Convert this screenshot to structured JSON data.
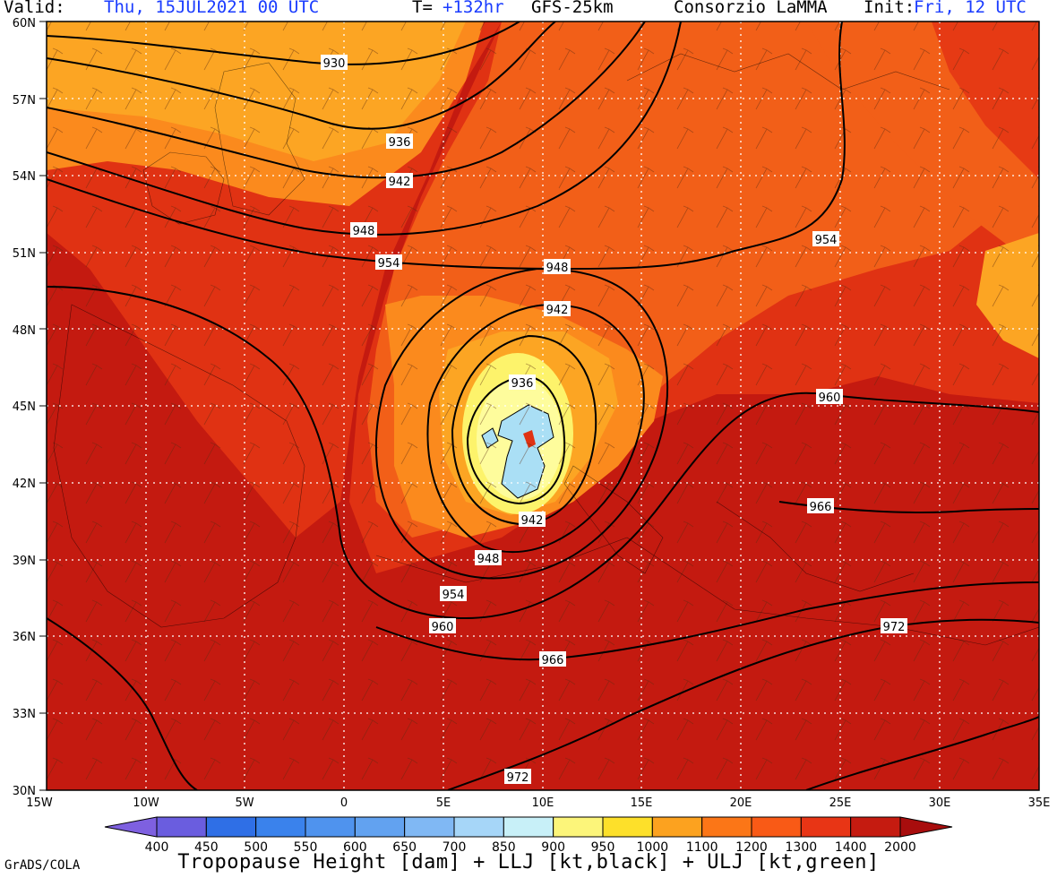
{
  "header": {
    "valid_label": "Valid:",
    "valid_value": "Thu, 15JUL2021 00 UTC",
    "tlabel": "T=",
    "tvalue": "+132hr",
    "model": "GFS-25km",
    "org": "Consorzio LaMMA",
    "init_label": "Init:",
    "init_value": "Fri, 12 UTC"
  },
  "axes": {
    "lat_labels": [
      "60N",
      "57N",
      "54N",
      "51N",
      "48N",
      "45N",
      "42N",
      "39N",
      "36N",
      "33N",
      "30N"
    ],
    "lon_labels": [
      "15W",
      "10W",
      "5W",
      "0",
      "5E",
      "10E",
      "15E",
      "20E",
      "25E",
      "30E",
      "35E"
    ]
  },
  "contour_labels": [
    "930",
    "936",
    "942",
    "948",
    "948",
    "954",
    "954",
    "942",
    "936",
    "942",
    "948",
    "954",
    "960",
    "960",
    "966",
    "966",
    "972",
    "972"
  ],
  "colorbar": {
    "ticks": [
      "400",
      "450",
      "500",
      "550",
      "600",
      "650",
      "700",
      "850",
      "900",
      "950",
      "1000",
      "1100",
      "1200",
      "1300",
      "1400",
      "2000"
    ],
    "colors": [
      "#7e60e0",
      "#6a5ddf",
      "#2f6fe6",
      "#3a82ec",
      "#4f93ee",
      "#62a2f0",
      "#80b8f4",
      "#a6d6f8",
      "#c8f0f8",
      "#fcf57a",
      "#fde02a",
      "#fca21f",
      "#fb7617",
      "#f95a16",
      "#e83515",
      "#c51b10",
      "#a80d0d"
    ]
  },
  "title": "Tropopause Height [dam] + LLJ [kt,black] + ULJ [kt,green]",
  "credit": "GrADS/COLA",
  "colors": {
    "deep_red": "#c41a10",
    "red": "#e03213",
    "red_orange": "#f25f18",
    "orange": "#fb8a1d",
    "light_orange": "#fca523",
    "yellow": "#fdf36b",
    "pale_yellow": "#fefc9c",
    "cyan": "#aadff5",
    "contour": "#000000",
    "wind_green": "#73c72a"
  }
}
